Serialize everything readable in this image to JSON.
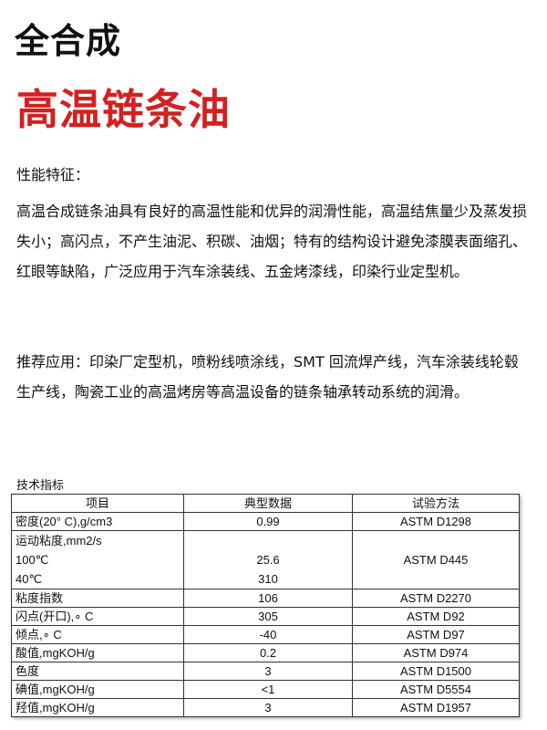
{
  "title": "全合成",
  "subtitle": "高温链条油",
  "features_heading": "性能特征：",
  "paragraph1": "高温合成链条油具有良好的高温性能和优异的润滑性能，高温结焦量少及蒸发损失小；高闪点，不产生油泥、积碳、油烟；特有的结构设计避免漆膜表面缩孔、红眼等缺陷，广泛应用于汽车涂装线、五金烤漆线，印染行业定型机。",
  "paragraph2": "推荐应用：印染厂定型机，喷粉线喷涂线，SMT 回流焊产线，汽车涂装线轮毂生产线，陶瓷工业的高温烤房等高温设备的链条轴承转动系统的润滑。",
  "table_label": "技术指标",
  "table": {
    "headers": [
      "项目",
      "典型数据",
      "试验方法"
    ],
    "density": [
      "密度(20° C),g/cm3",
      "0.99",
      "ASTM D1298"
    ],
    "viscosity": {
      "label": "运动粘度,mm2/s",
      "t100": "100℃",
      "t40": "40℃",
      "v100": "25.6",
      "v40": "310",
      "method": "ASTM D445"
    },
    "rows": [
      [
        "粘度指数",
        "106",
        "ASTM D2270"
      ],
      [
        "闪点(开口),∘ C",
        "305",
        "ASTM D92"
      ],
      [
        "倾点,∘ C",
        "-40",
        "ASTM D97"
      ],
      [
        "酸值,mgKOH/g",
        "0.2",
        "ASTM D974"
      ],
      [
        "色度",
        "3",
        "ASTM D1500"
      ],
      [
        "碘值,mgKOH/g",
        "<1",
        "ASTM D5554"
      ],
      [
        "羟值,mgKOH/g",
        "3",
        "ASTM D1957"
      ]
    ]
  }
}
